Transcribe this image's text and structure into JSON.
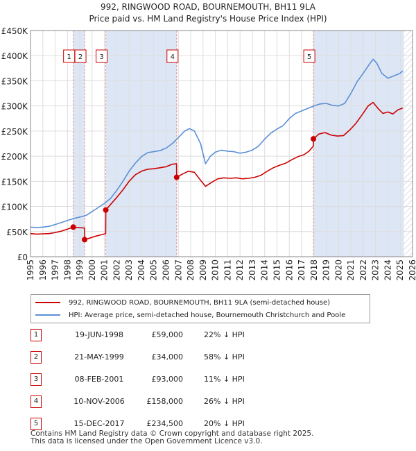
{
  "header": {
    "title": "992, RINGWOOD ROAD, BOURNEMOUTH, BH11 9LA",
    "subtitle": "Price paid vs. HM Land Registry's House Price Index (HPI)"
  },
  "colors": {
    "red": "#cc0000",
    "blue": "#5b8fd6",
    "shade": "#dde6f5",
    "vline": "#e89090",
    "grid": "#dddddd",
    "hatch": "#bbbbbb"
  },
  "chart_data": {
    "type": "line",
    "title": "992, RINGWOOD ROAD, BOURNEMOUTH, BH11 9LA",
    "subtitle": "Price paid vs. HM Land Registry's House Price Index (HPI)",
    "x_range": [
      1995,
      2026
    ],
    "ylim": [
      0,
      450000
    ],
    "y_ticks": [
      0,
      50000,
      100000,
      150000,
      200000,
      250000,
      300000,
      350000,
      400000,
      450000
    ],
    "y_tick_labels": [
      "£0",
      "£50K",
      "£100K",
      "£150K",
      "£200K",
      "£250K",
      "£300K",
      "£350K",
      "£400K",
      "£450K"
    ],
    "x_tick_labels": [
      "1995",
      "1996",
      "1997",
      "1998",
      "1999",
      "2000",
      "2001",
      "2002",
      "2003",
      "2004",
      "2005",
      "2006",
      "2007",
      "2008",
      "2009",
      "2010",
      "2011",
      "2012",
      "2013",
      "2014",
      "2015",
      "2016",
      "2017",
      "2018",
      "2019",
      "2020",
      "2021",
      "2022",
      "2023",
      "2024",
      "2025",
      "2026"
    ],
    "grid": true,
    "data_end_year": 2025.3,
    "series": [
      {
        "name": "992, RINGWOOD ROAD, BOURNEMOUTH, BH11 9LA (semi-detached house)",
        "color": "#cc0000",
        "points": [
          [
            1995.0,
            46000
          ],
          [
            1995.5,
            45000
          ],
          [
            1996.0,
            45500
          ],
          [
            1996.5,
            46000
          ],
          [
            1997.0,
            48000
          ],
          [
            1997.5,
            51000
          ],
          [
            1998.0,
            55000
          ],
          [
            1998.47,
            59000
          ],
          [
            1998.9,
            58000
          ],
          [
            1999.39,
            57000
          ],
          [
            1999.4,
            34000
          ],
          [
            1999.8,
            37000
          ],
          [
            2000.3,
            41000
          ],
          [
            2000.8,
            44000
          ],
          [
            2001.1,
            46000
          ],
          [
            2001.11,
            93000
          ],
          [
            2001.5,
            104000
          ],
          [
            2002.0,
            118000
          ],
          [
            2002.5,
            133000
          ],
          [
            2003.0,
            150000
          ],
          [
            2003.5,
            163000
          ],
          [
            2004.0,
            170000
          ],
          [
            2004.5,
            174000
          ],
          [
            2005.0,
            175000
          ],
          [
            2005.5,
            177000
          ],
          [
            2006.0,
            179000
          ],
          [
            2006.5,
            184000
          ],
          [
            2006.85,
            185000
          ],
          [
            2006.86,
            158000
          ],
          [
            2007.3,
            164000
          ],
          [
            2007.8,
            170000
          ],
          [
            2008.3,
            168000
          ],
          [
            2008.8,
            152000
          ],
          [
            2009.2,
            140000
          ],
          [
            2009.7,
            148000
          ],
          [
            2010.2,
            155000
          ],
          [
            2010.7,
            157000
          ],
          [
            2011.2,
            156000
          ],
          [
            2011.7,
            157000
          ],
          [
            2012.2,
            155000
          ],
          [
            2012.7,
            156000
          ],
          [
            2013.2,
            158000
          ],
          [
            2013.7,
            162000
          ],
          [
            2014.2,
            170000
          ],
          [
            2014.7,
            177000
          ],
          [
            2015.2,
            182000
          ],
          [
            2015.7,
            186000
          ],
          [
            2016.2,
            193000
          ],
          [
            2016.7,
            199000
          ],
          [
            2017.2,
            203000
          ],
          [
            2017.6,
            210000
          ],
          [
            2017.95,
            220000
          ],
          [
            2017.96,
            234500
          ],
          [
            2018.4,
            244000
          ],
          [
            2018.9,
            247000
          ],
          [
            2019.4,
            242000
          ],
          [
            2019.9,
            240000
          ],
          [
            2020.4,
            241000
          ],
          [
            2020.9,
            252000
          ],
          [
            2021.4,
            265000
          ],
          [
            2021.9,
            282000
          ],
          [
            2022.4,
            300000
          ],
          [
            2022.8,
            307000
          ],
          [
            2023.2,
            295000
          ],
          [
            2023.6,
            285000
          ],
          [
            2024.0,
            288000
          ],
          [
            2024.4,
            284000
          ],
          [
            2024.8,
            292000
          ],
          [
            2025.2,
            296000
          ]
        ]
      },
      {
        "name": "HPI: Average price, semi-detached house, Bournemouth Christchurch and Poole",
        "color": "#5b8fd6",
        "points": [
          [
            1995.0,
            59000
          ],
          [
            1995.5,
            58000
          ],
          [
            1996.0,
            59000
          ],
          [
            1996.5,
            60500
          ],
          [
            1997.0,
            64000
          ],
          [
            1997.5,
            68000
          ],
          [
            1998.0,
            72000
          ],
          [
            1998.5,
            76000
          ],
          [
            1999.0,
            79000
          ],
          [
            1999.5,
            82000
          ],
          [
            2000.0,
            90000
          ],
          [
            2000.5,
            98000
          ],
          [
            2001.0,
            106000
          ],
          [
            2001.5,
            116000
          ],
          [
            2002.0,
            132000
          ],
          [
            2002.5,
            150000
          ],
          [
            2003.0,
            170000
          ],
          [
            2003.5,
            186000
          ],
          [
            2004.0,
            199000
          ],
          [
            2004.5,
            207000
          ],
          [
            2005.0,
            209000
          ],
          [
            2005.5,
            211000
          ],
          [
            2006.0,
            216000
          ],
          [
            2006.5,
            225000
          ],
          [
            2007.0,
            237000
          ],
          [
            2007.5,
            250000
          ],
          [
            2007.9,
            255000
          ],
          [
            2008.3,
            250000
          ],
          [
            2008.8,
            225000
          ],
          [
            2009.2,
            185000
          ],
          [
            2009.6,
            200000
          ],
          [
            2010.0,
            208000
          ],
          [
            2010.5,
            212000
          ],
          [
            2011.0,
            210000
          ],
          [
            2011.5,
            209000
          ],
          [
            2012.0,
            206000
          ],
          [
            2012.5,
            208000
          ],
          [
            2013.0,
            212000
          ],
          [
            2013.5,
            220000
          ],
          [
            2014.0,
            234000
          ],
          [
            2014.5,
            246000
          ],
          [
            2015.0,
            254000
          ],
          [
            2015.5,
            261000
          ],
          [
            2016.0,
            275000
          ],
          [
            2016.5,
            285000
          ],
          [
            2017.0,
            290000
          ],
          [
            2017.5,
            295000
          ],
          [
            2018.0,
            300000
          ],
          [
            2018.5,
            304000
          ],
          [
            2019.0,
            305000
          ],
          [
            2019.5,
            301000
          ],
          [
            2020.0,
            300000
          ],
          [
            2020.5,
            305000
          ],
          [
            2021.0,
            325000
          ],
          [
            2021.5,
            348000
          ],
          [
            2022.0,
            365000
          ],
          [
            2022.5,
            383000
          ],
          [
            2022.8,
            393000
          ],
          [
            2023.1,
            385000
          ],
          [
            2023.5,
            365000
          ],
          [
            2024.0,
            355000
          ],
          [
            2024.5,
            360000
          ],
          [
            2025.0,
            365000
          ],
          [
            2025.2,
            370000
          ]
        ]
      }
    ],
    "sales": [
      {
        "id": "1",
        "year": 1998.47,
        "price": 59000,
        "date": "19-JUN-1998",
        "price_label": "£59,000",
        "hpi": "22% ↓ HPI"
      },
      {
        "id": "2",
        "year": 1999.39,
        "price": 34000,
        "date": "21-MAY-1999",
        "price_label": "£34,000",
        "hpi": "58% ↓ HPI"
      },
      {
        "id": "3",
        "year": 2001.11,
        "price": 93000,
        "date": "08-FEB-2001",
        "price_label": "£93,000",
        "hpi": "11% ↓ HPI"
      },
      {
        "id": "4",
        "year": 2006.86,
        "price": 158000,
        "date": "10-NOV-2006",
        "price_label": "£158,000",
        "hpi": "26% ↓ HPI"
      },
      {
        "id": "5",
        "year": 2017.96,
        "price": 234500,
        "date": "15-DEC-2017",
        "price_label": "£234,500",
        "hpi": "20% ↓ HPI"
      }
    ]
  },
  "legend": {
    "red_label": "992, RINGWOOD ROAD, BOURNEMOUTH, BH11 9LA (semi-detached house)",
    "blue_label": "HPI: Average price, semi-detached house, Bournemouth Christchurch and Poole"
  },
  "footer": {
    "line1": "Contains HM Land Registry data © Crown copyright and database right 2025.",
    "line2": "This data is licensed under the Open Government Licence v3.0."
  }
}
